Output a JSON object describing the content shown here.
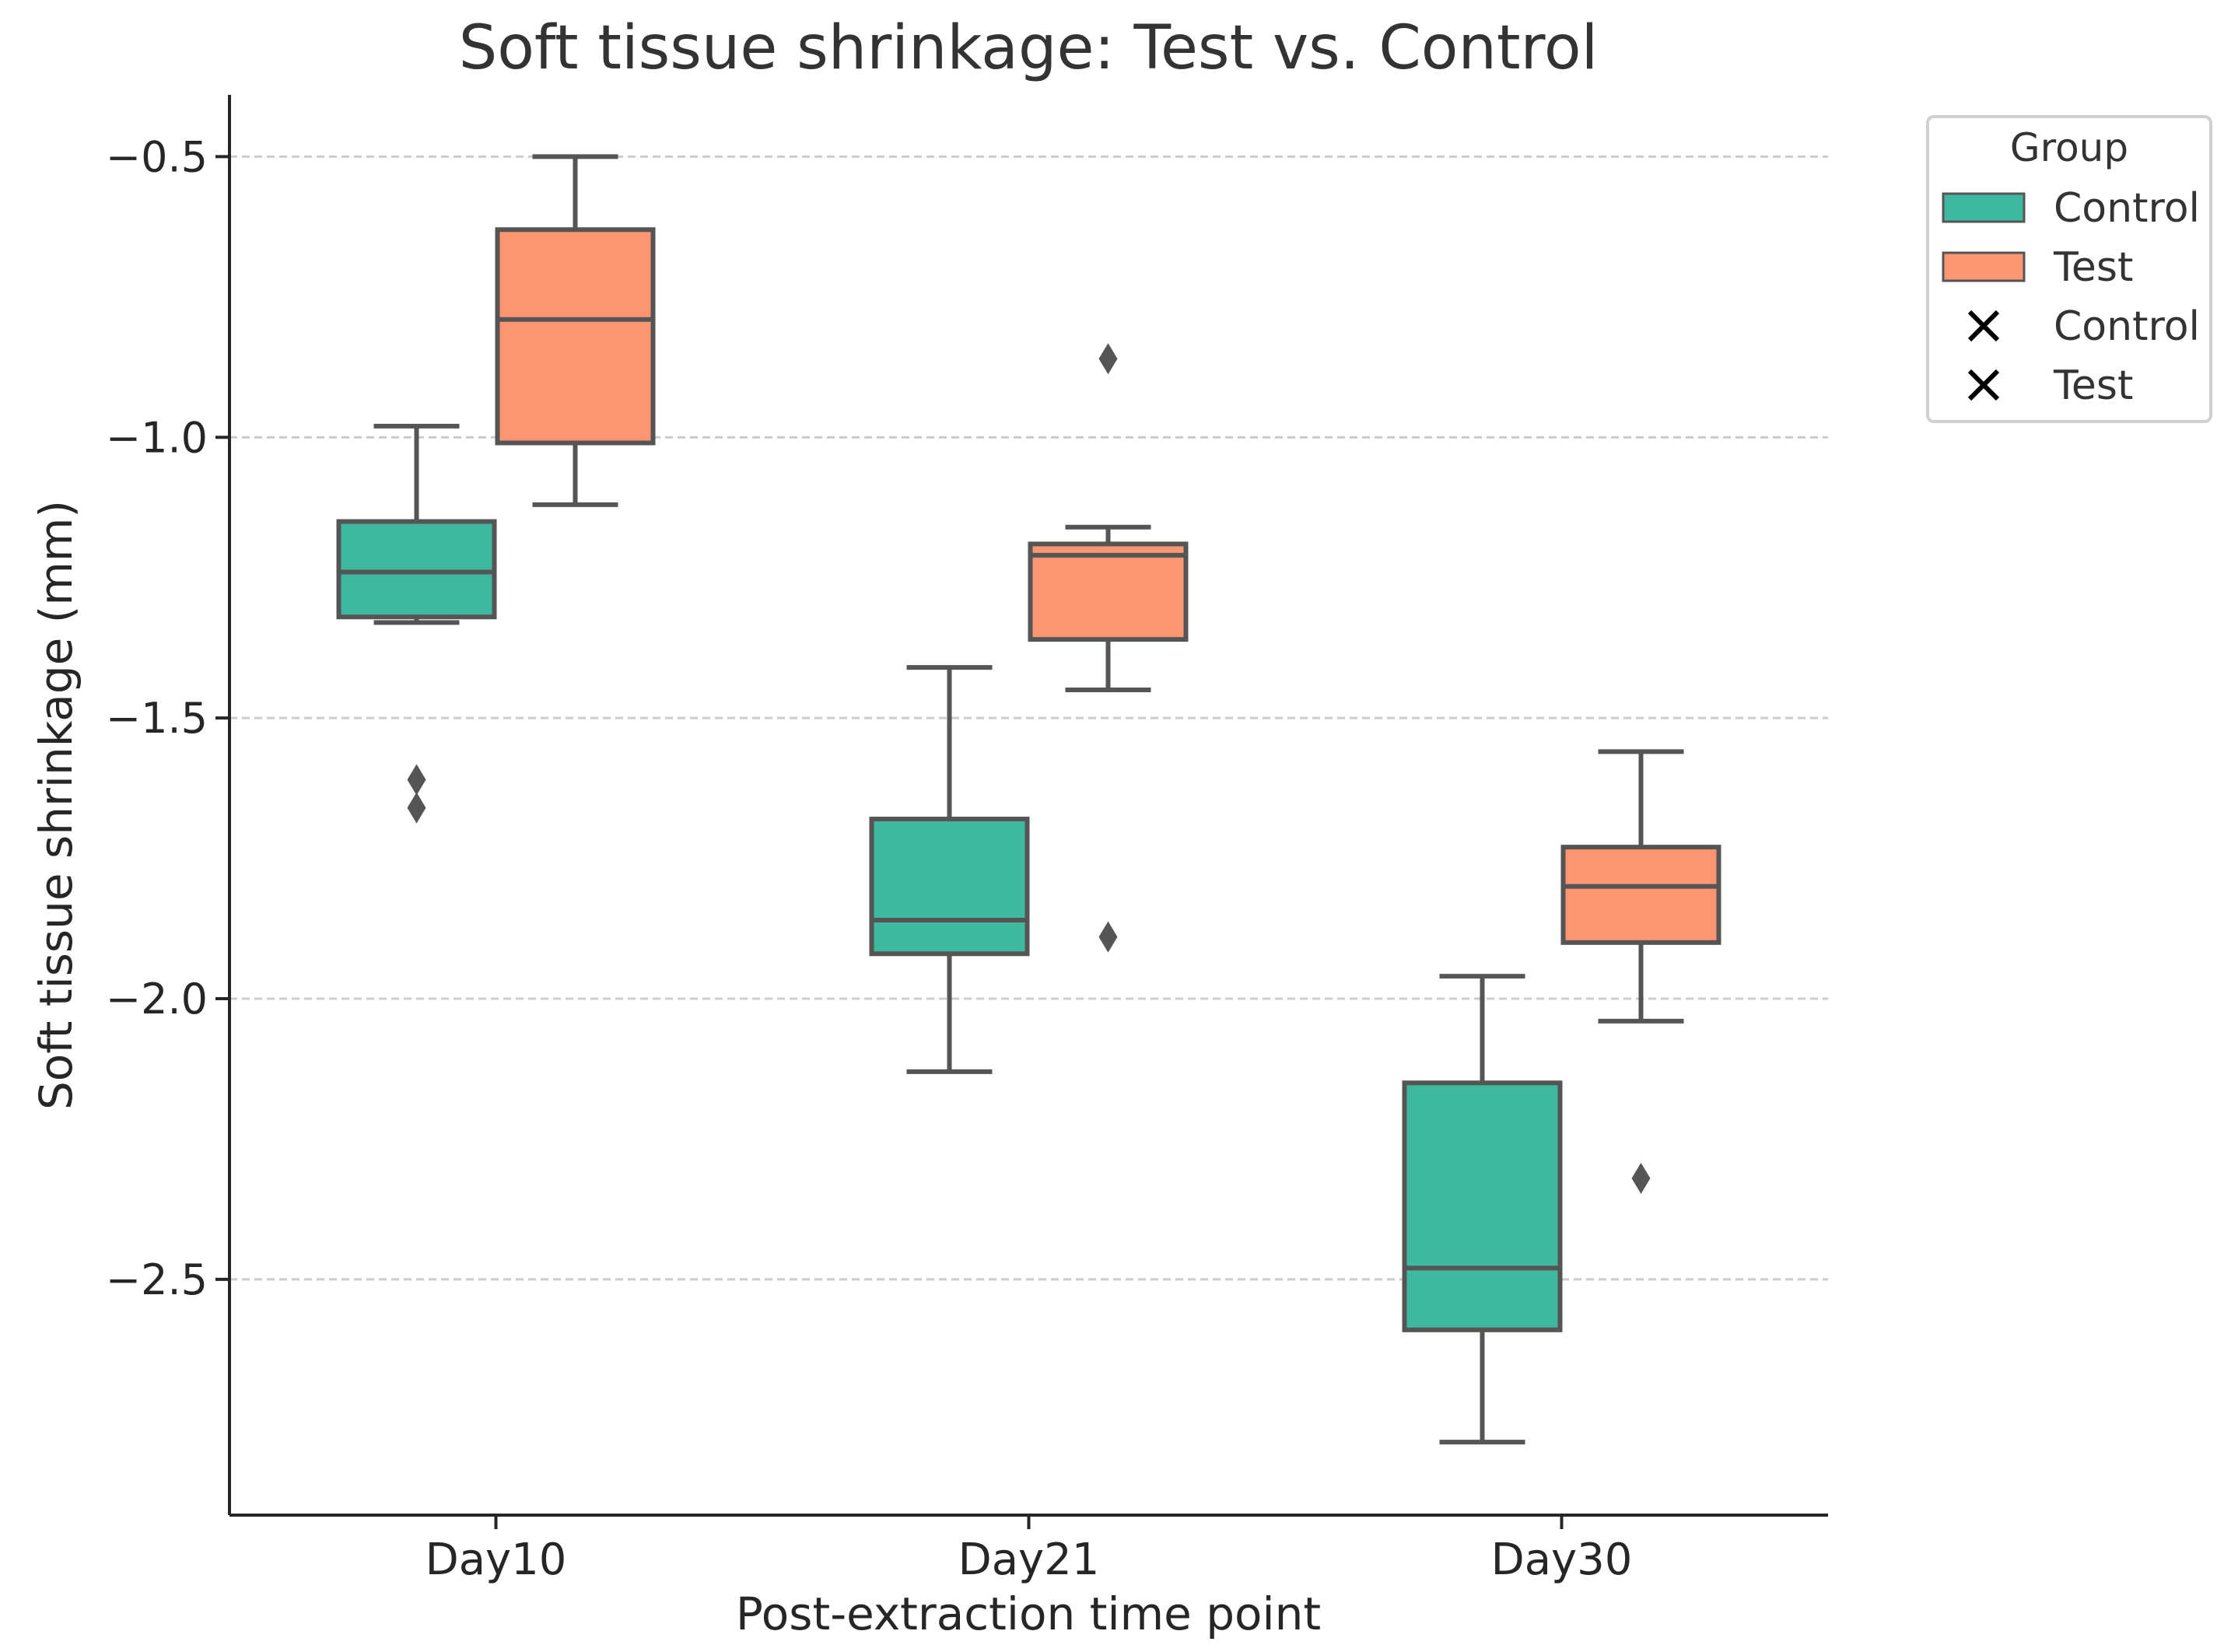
{
  "chart_data": {
    "type": "box",
    "title": "Soft tissue shrinkage: Test vs. Control",
    "xlabel": "Post-extraction time point",
    "ylabel": "Soft tissue shrinkage (mm)",
    "ylim": [
      -2.92,
      -0.39
    ],
    "yticks": [
      -0.5,
      -1.0,
      -1.5,
      -2.0,
      -2.5
    ],
    "ytick_labels": [
      "−0.5",
      "−1.0",
      "−1.5",
      "−2.0",
      "−2.5"
    ],
    "grid": "horizontal-dashed",
    "categories": [
      "Day10",
      "Day21",
      "Day30"
    ],
    "series": [
      {
        "name": "Control",
        "color": "#3fb8a0",
        "boxes": [
          {
            "whisker_low": -1.33,
            "q1": -1.32,
            "median": -1.24,
            "q3": -1.15,
            "whisker_high": -0.98,
            "outliers": [
              -1.61,
              -1.66
            ]
          },
          {
            "whisker_low": -2.13,
            "q1": -1.92,
            "median": -1.86,
            "q3": -1.68,
            "whisker_high": -1.41,
            "outliers": []
          },
          {
            "whisker_low": -2.79,
            "q1": -2.59,
            "median": -2.48,
            "q3": -2.15,
            "whisker_high": -1.96,
            "outliers": []
          }
        ]
      },
      {
        "name": "Test",
        "color": "#fc9571",
        "boxes": [
          {
            "whisker_low": -1.12,
            "q1": -1.01,
            "median": -0.79,
            "q3": -0.63,
            "whisker_high": -0.5,
            "outliers": []
          },
          {
            "whisker_low": -1.45,
            "q1": -1.36,
            "median": -1.21,
            "q3": -1.19,
            "whisker_high": -1.16,
            "outliers": [
              -0.86,
              -1.89
            ]
          },
          {
            "whisker_low": -2.04,
            "q1": -1.9,
            "median": -1.8,
            "q3": -1.73,
            "whisker_high": -1.56,
            "outliers": [
              -2.32
            ]
          }
        ]
      }
    ],
    "legend": {
      "title": "Group",
      "placement": "upper-right-outside",
      "entries": [
        {
          "label": "Control",
          "marker": "box",
          "color": "#3fb8a0"
        },
        {
          "label": "Test",
          "marker": "box",
          "color": "#fc9571"
        },
        {
          "label": "Control",
          "marker": "x-mark"
        },
        {
          "label": "Test",
          "marker": "x-mark"
        }
      ]
    }
  }
}
